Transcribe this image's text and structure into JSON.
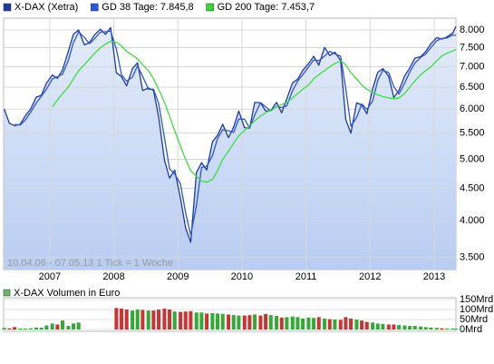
{
  "chart_data": [
    {
      "type": "line",
      "annotation": "10.04.06 - 07.05.13   1 Tick = 1 Woche",
      "log_scale": true,
      "grid": true,
      "legend": "top-left",
      "x": [
        2006.29,
        2006.37,
        2006.45,
        2006.54,
        2006.62,
        2006.7,
        2006.79,
        2006.87,
        2006.95,
        2007.04,
        2007.12,
        2007.2,
        2007.29,
        2007.37,
        2007.45,
        2007.54,
        2007.62,
        2007.7,
        2007.79,
        2007.87,
        2007.95,
        2008.04,
        2008.12,
        2008.2,
        2008.29,
        2008.37,
        2008.45,
        2008.54,
        2008.62,
        2008.7,
        2008.79,
        2008.87,
        2008.95,
        2009.04,
        2009.12,
        2009.2,
        2009.29,
        2009.37,
        2009.45,
        2009.54,
        2009.62,
        2009.7,
        2009.79,
        2009.87,
        2009.95,
        2010.04,
        2010.12,
        2010.2,
        2010.29,
        2010.37,
        2010.45,
        2010.54,
        2010.62,
        2010.7,
        2010.79,
        2010.87,
        2010.95,
        2011.04,
        2011.12,
        2011.2,
        2011.29,
        2011.37,
        2011.45,
        2011.54,
        2011.62,
        2011.7,
        2011.79,
        2011.87,
        2011.95,
        2012.04,
        2012.12,
        2012.2,
        2012.29,
        2012.37,
        2012.45,
        2012.54,
        2012.62,
        2012.7,
        2012.79,
        2012.87,
        2012.95,
        2013.04,
        2013.12,
        2013.2,
        2013.29,
        2013.34
      ],
      "series": [
        {
          "name": "X-DAX (Xetra)",
          "color": "#1f3a9e",
          "values": [
            6000,
            5700,
            5650,
            5680,
            5860,
            6000,
            6270,
            6310,
            6600,
            6790,
            6710,
            6920,
            7400,
            7880,
            8000,
            7580,
            7640,
            7860,
            8020,
            7870,
            8070,
            6850,
            6750,
            6530,
            6950,
            7100,
            6420,
            6480,
            6420,
            5830,
            4990,
            4670,
            4810,
            4340,
            3900,
            3700,
            4770,
            4940,
            4810,
            5330,
            5460,
            5680,
            5410,
            5620,
            5960,
            5610,
            5600,
            6150,
            6140,
            5960,
            5970,
            6150,
            5920,
            6230,
            6600,
            6690,
            6910,
            7080,
            7270,
            7040,
            7510,
            7290,
            7380,
            7160,
            5780,
            5500,
            6140,
            6090,
            5900,
            6460,
            6860,
            6950,
            6760,
            6260,
            6420,
            6770,
            6970,
            7220,
            7260,
            7400,
            7610,
            7780,
            7740,
            7800,
            7910,
            8100
          ]
        },
        {
          "name": "GD 38 Tage: 7.845,8",
          "color": "#2a55e0",
          "values": [
            null,
            null,
            5675,
            5665,
            5770,
            5930,
            6135,
            6290,
            6455,
            6695,
            6750,
            6815,
            7160,
            7640,
            7940,
            7790,
            7610,
            7750,
            7940,
            7945,
            7970,
            7460,
            6800,
            6640,
            6740,
            7025,
            6760,
            6450,
            6450,
            6125,
            5410,
            4830,
            4740,
            4575,
            4120,
            3800,
            4235,
            4855,
            4875,
            5070,
            5395,
            5570,
            5545,
            5515,
            5790,
            5785,
            5605,
            5875,
            6145,
            6050,
            5965,
            6060,
            6035,
            6075,
            6415,
            6645,
            6800,
            6995,
            7175,
            7155,
            7275,
            7400,
            7335,
            7270,
            6470,
            5640,
            5820,
            6115,
            5995,
            6180,
            6660,
            6905,
            6855,
            6510,
            6340,
            6595,
            6870,
            7095,
            7240,
            7330,
            7505,
            7695,
            7760,
            7770,
            7855,
            7845.8
          ]
        },
        {
          "name": "GD 200 Tage: 7.453,7",
          "color": "#33dd33",
          "values": [
            null,
            null,
            null,
            null,
            null,
            null,
            null,
            null,
            null,
            6050,
            6200,
            6350,
            6500,
            6700,
            6900,
            7050,
            7200,
            7350,
            7500,
            7600,
            7680,
            7650,
            7550,
            7400,
            7300,
            7200,
            7050,
            6900,
            6700,
            6450,
            6150,
            5850,
            5550,
            5250,
            5000,
            4800,
            4700,
            4620,
            4600,
            4650,
            4800,
            5000,
            5150,
            5300,
            5450,
            5550,
            5650,
            5750,
            5850,
            5920,
            5980,
            6050,
            6100,
            6150,
            6250,
            6350,
            6450,
            6550,
            6700,
            6800,
            6900,
            7000,
            7080,
            7150,
            7050,
            6850,
            6700,
            6550,
            6450,
            6380,
            6320,
            6280,
            6250,
            6230,
            6250,
            6350,
            6500,
            6650,
            6800,
            6900,
            7000,
            7150,
            7280,
            7350,
            7410,
            7453.7
          ]
        }
      ],
      "xlim": [
        2006.28,
        2013.34
      ],
      "xticks": [
        2007,
        2008,
        2009,
        2010,
        2011,
        2012,
        2013
      ],
      "ylim": [
        3350,
        8350
      ],
      "yticks": [
        {
          "value": 3500,
          "label": "3.500"
        },
        {
          "value": 4000,
          "label": "4.000"
        },
        {
          "value": 4500,
          "label": "4.500"
        },
        {
          "value": 5000,
          "label": "5.000"
        },
        {
          "value": 5500,
          "label": "5.500"
        },
        {
          "value": 6000,
          "label": "6.000"
        },
        {
          "value": 6500,
          "label": "6.500"
        },
        {
          "value": 7000,
          "label": "7.000"
        },
        {
          "value": 7500,
          "label": "7.500"
        },
        {
          "value": 8000,
          "label": "8.000"
        }
      ]
    },
    {
      "type": "bar",
      "title": "X-DAX Volumen in Euro",
      "legend_color": "#66bb66",
      "x": [
        2006.29,
        2006.37,
        2006.45,
        2006.54,
        2006.62,
        2006.7,
        2006.79,
        2006.87,
        2006.95,
        2007.04,
        2007.12,
        2007.2,
        2007.29,
        2007.37,
        2007.45,
        2007.54,
        2007.62,
        2007.7,
        2007.79,
        2007.87,
        2007.95,
        2008.04,
        2008.12,
        2008.2,
        2008.29,
        2008.37,
        2008.45,
        2008.54,
        2008.62,
        2008.7,
        2008.79,
        2008.87,
        2008.95,
        2009.04,
        2009.12,
        2009.2,
        2009.29,
        2009.37,
        2009.45,
        2009.54,
        2009.62,
        2009.7,
        2009.79,
        2009.87,
        2009.95,
        2010.04,
        2010.12,
        2010.2,
        2010.29,
        2010.37,
        2010.45,
        2010.54,
        2010.62,
        2010.7,
        2010.79,
        2010.87,
        2010.95,
        2011.04,
        2011.12,
        2011.2,
        2011.29,
        2011.37,
        2011.45,
        2011.54,
        2011.62,
        2011.7,
        2011.79,
        2011.87,
        2011.95,
        2012.04,
        2012.12,
        2012.2,
        2012.29,
        2012.37,
        2012.45,
        2012.54,
        2012.62,
        2012.7,
        2012.79,
        2012.87,
        2012.95,
        2013.04,
        2013.12,
        2013.2,
        2013.29,
        2013.34
      ],
      "values": [
        8,
        6,
        12,
        5,
        4,
        6,
        10,
        9,
        20,
        30,
        25,
        45,
        18,
        30,
        35,
        null,
        null,
        null,
        null,
        null,
        null,
        108,
        105,
        100,
        95,
        100,
        98,
        95,
        95,
        100,
        105,
        100,
        90,
        88,
        90,
        92,
        85,
        85,
        80,
        82,
        80,
        78,
        75,
        72,
        70,
        70,
        72,
        75,
        70,
        78,
        72,
        68,
        60,
        62,
        65,
        62,
        55,
        60,
        58,
        62,
        55,
        52,
        50,
        48,
        62,
        55,
        50,
        45,
        38,
        35,
        30,
        28,
        25,
        25,
        22,
        20,
        18,
        18,
        15,
        12,
        10,
        8,
        6,
        5,
        5,
        4
      ],
      "colors": [
        "#33aa33",
        "#cc3333",
        "#cc3333",
        "#33aa33",
        "#33aa33",
        "#33aa33",
        "#33aa33",
        "#33aa33",
        "#33aa33",
        "#33aa33",
        "#cc3333",
        "#33aa33",
        "#33aa33",
        "#33aa33",
        "#33aa33",
        "#cc3333",
        "#33aa33",
        "#33aa33",
        "#33aa33",
        "#cc3333",
        "#33aa33",
        "#cc3333",
        "#cc3333",
        "#cc3333",
        "#33aa33",
        "#33aa33",
        "#cc3333",
        "#33aa33",
        "#cc3333",
        "#cc3333",
        "#cc3333",
        "#cc3333",
        "#33aa33",
        "#cc3333",
        "#cc3333",
        "#cc3333",
        "#33aa33",
        "#33aa33",
        "#cc3333",
        "#33aa33",
        "#33aa33",
        "#33aa33",
        "#cc3333",
        "#33aa33",
        "#33aa33",
        "#cc3333",
        "#cc3333",
        "#33aa33",
        "#cc3333",
        "#cc3333",
        "#33aa33",
        "#33aa33",
        "#cc3333",
        "#33aa33",
        "#33aa33",
        "#33aa33",
        "#33aa33",
        "#33aa33",
        "#33aa33",
        "#cc3333",
        "#33aa33",
        "#cc3333",
        "#33aa33",
        "#cc3333",
        "#cc3333",
        "#cc3333",
        "#33aa33",
        "#cc3333",
        "#cc3333",
        "#33aa33",
        "#33aa33",
        "#33aa33",
        "#cc3333",
        "#cc3333",
        "#33aa33",
        "#33aa33",
        "#33aa33",
        "#33aa33",
        "#33aa33",
        "#33aa33",
        "#33aa33",
        "#33aa33",
        "#cc3333",
        "#33aa33",
        "#33aa33",
        "#33aa33"
      ],
      "xlim": [
        2006.28,
        2013.34
      ],
      "ylim": [
        0,
        150
      ],
      "yticks": [
        {
          "value": 0,
          "label": "0Mrd"
        },
        {
          "value": 50,
          "label": "50Mrd"
        },
        {
          "value": 100,
          "label": "100Mrd"
        },
        {
          "value": 150,
          "label": "150Mrd"
        }
      ]
    }
  ]
}
